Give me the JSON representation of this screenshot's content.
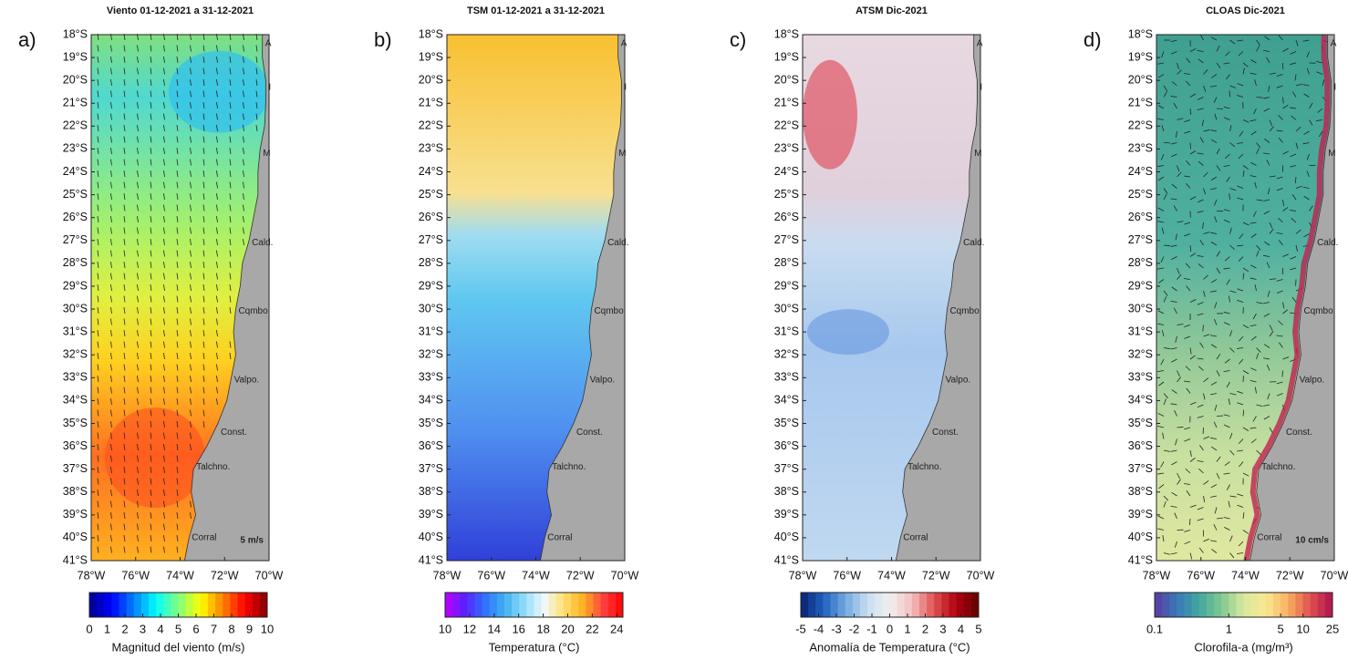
{
  "panels": [
    {
      "label": "a)",
      "title": "Viento 01-12-2021 a 31-12-2021",
      "lat_labels": [
        "18°S",
        "19°S",
        "20°S",
        "21°S",
        "22°S",
        "23°S",
        "24°S",
        "25°S",
        "26°S",
        "27°S",
        "28°S",
        "29°S",
        "30°S",
        "31°S",
        "32°S",
        "33°S",
        "34°S",
        "35°S",
        "36°S",
        "37°S",
        "38°S",
        "39°S",
        "40°S",
        "41°S"
      ],
      "lon_labels": [
        "78°W",
        "76°W",
        "74°W",
        "72°W",
        "70°W"
      ],
      "places": [
        "A",
        "I",
        "M",
        "Cald.",
        "Cqmbo.",
        "Valpo.",
        "Const.",
        "Talchno.",
        "Corral"
      ],
      "scale_label": "5 m/s",
      "colorbar": {
        "label": "Magnitud del viento (m/s)",
        "lim": [
          0,
          10
        ],
        "ticks": [
          0,
          1,
          2,
          3,
          4,
          5,
          6,
          7,
          8,
          9,
          10
        ],
        "log": false,
        "colormap": [
          "#00008f",
          "#0000ff",
          "#0080ff",
          "#00ffff",
          "#80ff80",
          "#ffff00",
          "#ff8000",
          "#ff0000",
          "#800000"
        ]
      }
    },
    {
      "label": "b)",
      "title": "TSM 01-12-2021 a 31-12-2021",
      "lat_labels": [
        "18°S",
        "19°S",
        "20°S",
        "21°S",
        "22°S",
        "23°S",
        "24°S",
        "25°S",
        "26°S",
        "27°S",
        "28°S",
        "29°S",
        "30°S",
        "31°S",
        "32°S",
        "33°S",
        "34°S",
        "35°S",
        "36°S",
        "37°S",
        "38°S",
        "39°S",
        "40°S",
        "41°S"
      ],
      "lon_labels": [
        "78°W",
        "76°W",
        "74°W",
        "72°W",
        "70°W"
      ],
      "places": [
        "A",
        "I",
        "M",
        "Cald.",
        "Cqmbo.",
        "Valpo.",
        "Const.",
        "Talchno.",
        "Corral"
      ],
      "colorbar": {
        "label": "Temperatura (°C)",
        "lim": [
          10,
          24.5
        ],
        "ticks": [
          10,
          12,
          14,
          16,
          18,
          20,
          22,
          24
        ],
        "log": false,
        "colormap": [
          "#c000ff",
          "#5a20ff",
          "#3070ff",
          "#40b0f0",
          "#90dcf8",
          "#f0f8ff",
          "#ffe070",
          "#ffb020",
          "#ff4040",
          "#ff0000"
        ]
      }
    },
    {
      "label": "c)",
      "title": "ATSM Dic-2021",
      "lat_labels": [
        "18°S",
        "19°S",
        "20°S",
        "21°S",
        "22°S",
        "23°S",
        "24°S",
        "25°S",
        "26°S",
        "27°S",
        "28°S",
        "29°S",
        "30°S",
        "31°S",
        "32°S",
        "33°S",
        "34°S",
        "35°S",
        "36°S",
        "37°S",
        "38°S",
        "39°S",
        "40°S",
        "41°S"
      ],
      "lon_labels": [
        "78°W",
        "76°W",
        "74°W",
        "72°W",
        "70°W"
      ],
      "places": [
        "A",
        "I",
        "M",
        "Cald.",
        "Cqmbo.",
        "Valpo.",
        "Const.",
        "Talchno.",
        "Corral"
      ],
      "colorbar": {
        "label": "Anomalía de Temperatura (°C)",
        "lim": [
          -5,
          5
        ],
        "ticks": [
          -5,
          -4,
          -3,
          -2,
          -1,
          0,
          1,
          2,
          3,
          4,
          5
        ],
        "log": false,
        "colormap": [
          "#08206e",
          "#2060c0",
          "#70a8e0",
          "#c8ddf0",
          "#f0f0f0",
          "#f4c0c0",
          "#e05050",
          "#b00010",
          "#600000"
        ]
      }
    },
    {
      "label": "d)",
      "title": "CLOAS Dic-2021",
      "lat_labels": [
        "18°S",
        "19°S",
        "20°S",
        "21°S",
        "22°S",
        "23°S",
        "24°S",
        "25°S",
        "26°S",
        "27°S",
        "28°S",
        "29°S",
        "30°S",
        "31°S",
        "32°S",
        "33°S",
        "34°S",
        "35°S",
        "36°S",
        "37°S",
        "38°S",
        "39°S",
        "40°S",
        "41°S"
      ],
      "lon_labels": [
        "78°W",
        "76°W",
        "74°W",
        "72°W",
        "70°W"
      ],
      "places": [
        "A",
        "I",
        "M",
        "Cald.",
        "Cqmbo.",
        "Valpo.",
        "Const.",
        "Talchno.",
        "Corral"
      ],
      "scale_label": "10 cm/s",
      "colorbar": {
        "label": "Clorofila-a (mg/m³)",
        "lim": [
          0.1,
          25
        ],
        "ticks": [
          0.1,
          1,
          5,
          10,
          25
        ],
        "log": true,
        "colormap": [
          "#5a3aa0",
          "#3a78b8",
          "#40a8a0",
          "#80c890",
          "#d8e8a0",
          "#f8e890",
          "#f8b060",
          "#e05050",
          "#b01050"
        ]
      }
    }
  ]
}
